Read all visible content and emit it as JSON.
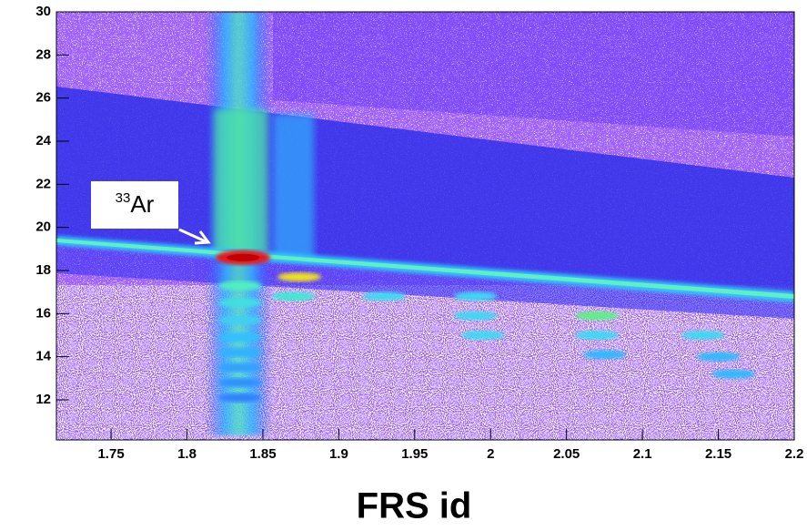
{
  "chart_data": {
    "type": "heatmap",
    "x_label": "FRS id",
    "xlim": [
      1.714,
      2.2
    ],
    "ylim": [
      10.14,
      30
    ],
    "xticks": [
      1.75,
      1.8,
      1.85,
      1.9,
      1.95,
      2,
      2.05,
      2.1,
      2.15,
      2.2
    ],
    "yticks": [
      12,
      14,
      16,
      18,
      20,
      22,
      24,
      26,
      28,
      30
    ],
    "x": [
      1.837,
      1.874,
      1.87,
      1.93,
      1.99,
      1.99,
      2.07,
      2.07,
      1.995,
      2.14,
      2.075,
      2.15,
      2.16,
      1.835,
      1.835,
      1.835,
      1.835,
      1.835,
      1.835,
      1.835,
      1.835
    ],
    "values": [
      18.6,
      17.7,
      16.8,
      16.8,
      16.8,
      15.9,
      15.9,
      15.0,
      15.0,
      15.0,
      14.1,
      14.0,
      13.2,
      17.3,
      16.5,
      15.7,
      14.9,
      14.2,
      13.5,
      12.8,
      12.1
    ],
    "colors": [
      "#e8141e",
      "#f0e020",
      "#40e8d0",
      "#40d8f0",
      "#40d8f0",
      "#40d8f0",
      "#60f080",
      "#40d8f0",
      "#40d8f0",
      "#40d8f0",
      "#30b8ff",
      "#30b8ff",
      "#30b8ff",
      "#50f0c0",
      "#40e0e0",
      "#40d0f0",
      "#30c0ff",
      "#30b0ff",
      "#30a0ff",
      "#3090ff",
      "#3080ff"
    ],
    "annotation": {
      "mass": "33",
      "element": "Ar"
    }
  }
}
